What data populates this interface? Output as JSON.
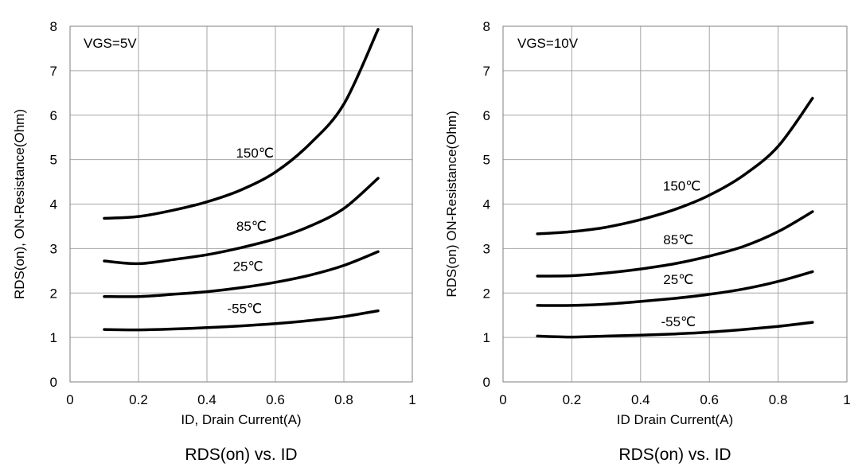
{
  "chart_data": [
    {
      "type": "line",
      "caption": "RDS(on) vs.  ID",
      "xlabel": "ID, Drain Current(A)",
      "ylabel": "RDS(on), ON-Resistance(Ohm)",
      "annotation": "VGS=5V",
      "xlim": [
        0,
        1
      ],
      "ylim": [
        0,
        8
      ],
      "xticks": [
        "0",
        "0.2",
        "0.4",
        "0.6",
        "0.8",
        "1"
      ],
      "yticks": [
        "0",
        "1",
        "2",
        "3",
        "4",
        "5",
        "6",
        "7",
        "8"
      ],
      "grid": true,
      "x": [
        0.1,
        0.2,
        0.3,
        0.4,
        0.5,
        0.6,
        0.7,
        0.8,
        0.9
      ],
      "series": [
        {
          "name": "150℃",
          "values": [
            3.68,
            3.72,
            3.86,
            4.05,
            4.32,
            4.72,
            5.35,
            6.25,
            7.93
          ]
        },
        {
          "name": "85℃",
          "values": [
            2.72,
            2.66,
            2.75,
            2.86,
            3.02,
            3.22,
            3.5,
            3.9,
            4.58
          ]
        },
        {
          "name": "25℃",
          "values": [
            1.92,
            1.92,
            1.97,
            2.03,
            2.12,
            2.24,
            2.4,
            2.62,
            2.93
          ]
        },
        {
          "name": "-55℃",
          "values": [
            1.18,
            1.17,
            1.19,
            1.22,
            1.26,
            1.31,
            1.38,
            1.47,
            1.6
          ]
        }
      ],
      "label_points": [
        [
          0.54,
          5.05
        ],
        [
          0.53,
          3.4
        ],
        [
          0.52,
          2.5
        ],
        [
          0.51,
          1.55
        ]
      ]
    },
    {
      "type": "line",
      "caption": "RDS(on) vs.  ID",
      "xlabel": "ID Drain Current(A)",
      "ylabel": "RDS(on) ON-Resistance(Ohm)",
      "annotation": "VGS=10V",
      "xlim": [
        0,
        1
      ],
      "ylim": [
        0,
        8
      ],
      "xticks": [
        "0",
        "0.2",
        "0.4",
        "0.6",
        "0.8",
        "1"
      ],
      "yticks": [
        "0",
        "1",
        "2",
        "3",
        "4",
        "5",
        "6",
        "7",
        "8"
      ],
      "grid": true,
      "x": [
        0.1,
        0.2,
        0.3,
        0.4,
        0.5,
        0.6,
        0.7,
        0.8,
        0.9
      ],
      "series": [
        {
          "name": "150℃",
          "values": [
            3.33,
            3.38,
            3.48,
            3.65,
            3.88,
            4.2,
            4.65,
            5.3,
            6.38
          ]
        },
        {
          "name": "85℃",
          "values": [
            2.38,
            2.39,
            2.45,
            2.54,
            2.66,
            2.83,
            3.05,
            3.38,
            3.83
          ]
        },
        {
          "name": "25℃",
          "values": [
            1.72,
            1.72,
            1.75,
            1.81,
            1.88,
            1.97,
            2.09,
            2.26,
            2.48
          ]
        },
        {
          "name": "-55℃",
          "values": [
            1.03,
            1.01,
            1.03,
            1.05,
            1.08,
            1.12,
            1.18,
            1.25,
            1.34
          ]
        }
      ],
      "label_points": [
        [
          0.52,
          4.3
        ],
        [
          0.51,
          3.1
        ],
        [
          0.51,
          2.2
        ],
        [
          0.51,
          1.25
        ]
      ]
    }
  ]
}
